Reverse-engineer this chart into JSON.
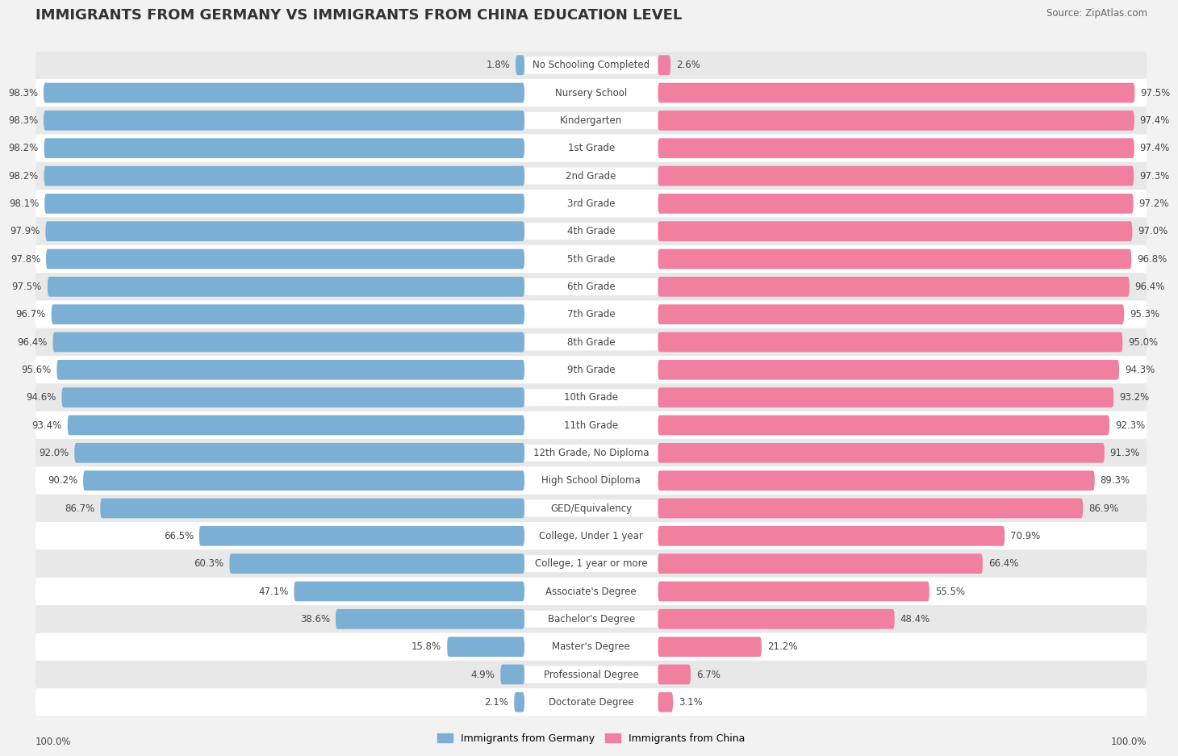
{
  "title": "IMMIGRANTS FROM GERMANY VS IMMIGRANTS FROM CHINA EDUCATION LEVEL",
  "source": "Source: ZipAtlas.com",
  "categories": [
    "No Schooling Completed",
    "Nursery School",
    "Kindergarten",
    "1st Grade",
    "2nd Grade",
    "3rd Grade",
    "4th Grade",
    "5th Grade",
    "6th Grade",
    "7th Grade",
    "8th Grade",
    "9th Grade",
    "10th Grade",
    "11th Grade",
    "12th Grade, No Diploma",
    "High School Diploma",
    "GED/Equivalency",
    "College, Under 1 year",
    "College, 1 year or more",
    "Associate's Degree",
    "Bachelor's Degree",
    "Master's Degree",
    "Professional Degree",
    "Doctorate Degree"
  ],
  "germany": [
    1.8,
    98.3,
    98.3,
    98.2,
    98.2,
    98.1,
    97.9,
    97.8,
    97.5,
    96.7,
    96.4,
    95.6,
    94.6,
    93.4,
    92.0,
    90.2,
    86.7,
    66.5,
    60.3,
    47.1,
    38.6,
    15.8,
    4.9,
    2.1
  ],
  "china": [
    2.6,
    97.5,
    97.4,
    97.4,
    97.3,
    97.2,
    97.0,
    96.8,
    96.4,
    95.3,
    95.0,
    94.3,
    93.2,
    92.3,
    91.3,
    89.3,
    86.9,
    70.9,
    66.4,
    55.5,
    48.4,
    21.2,
    6.7,
    3.1
  ],
  "germany_color": "#7bafd4",
  "china_color": "#f07fa0",
  "background_color": "#f2f2f2",
  "row_even_color": "#ffffff",
  "row_odd_color": "#e8e8e8",
  "label_box_color": "#ffffff",
  "legend_germany": "Immigrants from Germany",
  "legend_china": "Immigrants from China",
  "max_val": 100.0,
  "label_fontsize": 8.5,
  "value_fontsize": 8.5,
  "title_fontsize": 13
}
